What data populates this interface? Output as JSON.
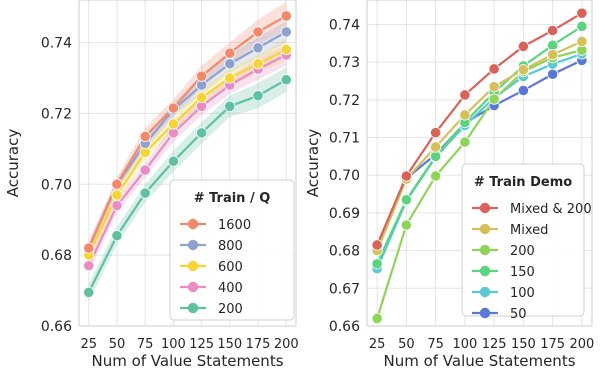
{
  "figure": {
    "legend_style": "boxed, light-gray frame, bold title"
  },
  "chart_data": [
    {
      "type": "line",
      "xlabel": "Num of Value Statements",
      "ylabel": "Accuracy",
      "x": [
        25,
        50,
        75,
        100,
        125,
        150,
        175,
        200
      ],
      "xticks": [
        25,
        50,
        75,
        100,
        125,
        150,
        175,
        200
      ],
      "ylim": [
        0.66,
        0.752
      ],
      "yticks": [
        0.66,
        0.68,
        0.7,
        0.72,
        0.74
      ],
      "ytick_labels": [
        "0.66",
        "0.68",
        "0.70",
        "0.72",
        "0.74"
      ],
      "grid": true,
      "shaded_band": true,
      "legend_title": "# Train / Q",
      "legend_position": "center-right",
      "series": [
        {
          "name": "1600",
          "color": "#F4886A",
          "values": [
            0.682,
            0.7,
            0.7135,
            0.7215,
            0.7305,
            0.737,
            0.743,
            0.7475
          ],
          "band": [
            0.002,
            0.002,
            0.0025,
            0.0025,
            0.003,
            0.003,
            0.0035,
            0.004
          ]
        },
        {
          "name": "800",
          "color": "#8FA2CF",
          "values": [
            0.682,
            0.7,
            0.7115,
            0.721,
            0.728,
            0.734,
            0.7385,
            0.743
          ],
          "band": [
            0.0015,
            0.0015,
            0.002,
            0.002,
            0.0025,
            0.0025,
            0.003,
            0.003
          ]
        },
        {
          "name": "600",
          "color": "#F5D437",
          "values": [
            0.68,
            0.697,
            0.709,
            0.717,
            0.7245,
            0.73,
            0.734,
            0.738
          ],
          "band": [
            0.002,
            0.002,
            0.002,
            0.002,
            0.0025,
            0.0025,
            0.0025,
            0.003
          ]
        },
        {
          "name": "400",
          "color": "#E98CC4",
          "values": [
            0.677,
            0.694,
            0.704,
            0.7145,
            0.722,
            0.728,
            0.7325,
            0.7365
          ],
          "band": [
            0.002,
            0.002,
            0.002,
            0.0025,
            0.0025,
            0.0025,
            0.003,
            0.003
          ]
        },
        {
          "name": "200",
          "color": "#5FC1A2",
          "values": [
            0.6695,
            0.6855,
            0.6975,
            0.7065,
            0.7145,
            0.722,
            0.725,
            0.7295
          ],
          "band": [
            0.0025,
            0.0025,
            0.0025,
            0.003,
            0.003,
            0.003,
            0.0035,
            0.0035
          ]
        }
      ]
    },
    {
      "type": "line",
      "xlabel": "Num of Value Statements",
      "ylabel": "Accuracy",
      "x": [
        25,
        50,
        75,
        100,
        125,
        150,
        175,
        200
      ],
      "xticks": [
        25,
        50,
        75,
        100,
        125,
        150,
        175,
        200
      ],
      "ylim": [
        0.66,
        0.7465
      ],
      "yticks": [
        0.66,
        0.67,
        0.68,
        0.69,
        0.7,
        0.71,
        0.72,
        0.73,
        0.74
      ],
      "ytick_labels": [
        "0.66",
        "0.67",
        "0.68",
        "0.69",
        "0.70",
        "0.71",
        "0.72",
        "0.73",
        "0.74"
      ],
      "grid": true,
      "legend_title": "# Train Demo",
      "legend_position": "lower-right",
      "series": [
        {
          "name": "Mixed & 200",
          "color": "#D9625A",
          "values": [
            0.6815,
            0.6998,
            0.7113,
            0.7213,
            0.7282,
            0.7342,
            0.7384,
            0.743
          ]
        },
        {
          "name": "Mixed",
          "color": "#D4C15A",
          "values": [
            0.68,
            0.699,
            0.7075,
            0.716,
            0.7235,
            0.728,
            0.732,
            0.7355
          ]
        },
        {
          "name": "200",
          "color": "#8FD45A",
          "values": [
            0.662,
            0.6868,
            0.6998,
            0.7088,
            0.7202,
            0.7275,
            0.7312,
            0.7332
          ]
        },
        {
          "name": "150",
          "color": "#5AD47F",
          "values": [
            0.6765,
            0.6935,
            0.705,
            0.714,
            0.722,
            0.729,
            0.7345,
            0.7395
          ]
        },
        {
          "name": "100",
          "color": "#5AC9D4",
          "values": [
            0.6752,
            0.6932,
            0.7048,
            0.7132,
            0.7205,
            0.7262,
            0.7295,
            0.7322
          ]
        },
        {
          "name": "50",
          "color": "#5A78D4",
          "values": [
            0.6802,
            0.6992,
            0.7055,
            0.7138,
            0.7185,
            0.7225,
            0.7268,
            0.7305
          ]
        }
      ]
    }
  ]
}
